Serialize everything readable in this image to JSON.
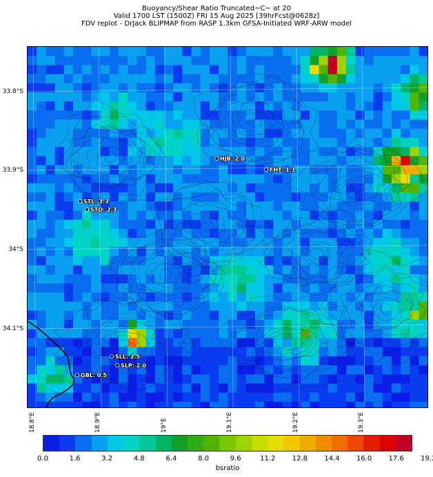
{
  "header": {
    "line1": "Buoyancy/Shear Ratio Truncated~C~    at 20",
    "line2": "Valid 1700 LST (1500Z) FRI 15 Aug 2025 [39hrFcst@0628z]",
    "line3": "FDV replot - DrJack BLIPMAP from RASP 1.3km GFSA-Initiated WRF-ARW model"
  },
  "axes": {
    "lat_labels": [
      "33.8°S",
      "33.9°S",
      "34°S",
      "34.1°S"
    ],
    "lon_labels": [
      "18.8°E",
      "18.9°E",
      "19°E",
      "19.1°E",
      "19.2°E",
      "19.3°E"
    ]
  },
  "stations": [
    {
      "name": "STL",
      "value": "3.3",
      "label": "STL: 3.3"
    },
    {
      "name": "STO",
      "value": "2.3",
      "label": "STO: 2.3"
    },
    {
      "name": "HJB",
      "value": "2.0",
      "label": "HJB: 2.0"
    },
    {
      "name": "FHT",
      "value": "1.1",
      "label": "FHT: 1.1"
    },
    {
      "name": "SLL",
      "value": "2.5",
      "label": "SLL: 2.5"
    },
    {
      "name": "SLP",
      "value": "2.0",
      "label": "SLP: 2.0"
    },
    {
      "name": "GBL",
      "value": "0.5",
      "label": "GBL: 0.5"
    }
  ],
  "colorbar": {
    "label": "bsratio",
    "ticks": [
      "0.0",
      "1.6",
      "3.2",
      "4.8",
      "6.4",
      "8.0",
      "9.6",
      "11.2",
      "12.8",
      "14.4",
      "16.0",
      "17.6",
      "19.2"
    ],
    "colors": [
      "#0a1ee6",
      "#0a3cf0",
      "#0a6ef0",
      "#0aa0f0",
      "#00c8e6",
      "#00d2c8",
      "#00c896",
      "#00b464",
      "#14a028",
      "#2daa14",
      "#50b400",
      "#78c800",
      "#a0d200",
      "#c8dc00",
      "#e6dc00",
      "#f0c800",
      "#f0aa00",
      "#f08c00",
      "#f06e00",
      "#f04600",
      "#e61e00",
      "#dc0000",
      "#be0028"
    ]
  }
}
